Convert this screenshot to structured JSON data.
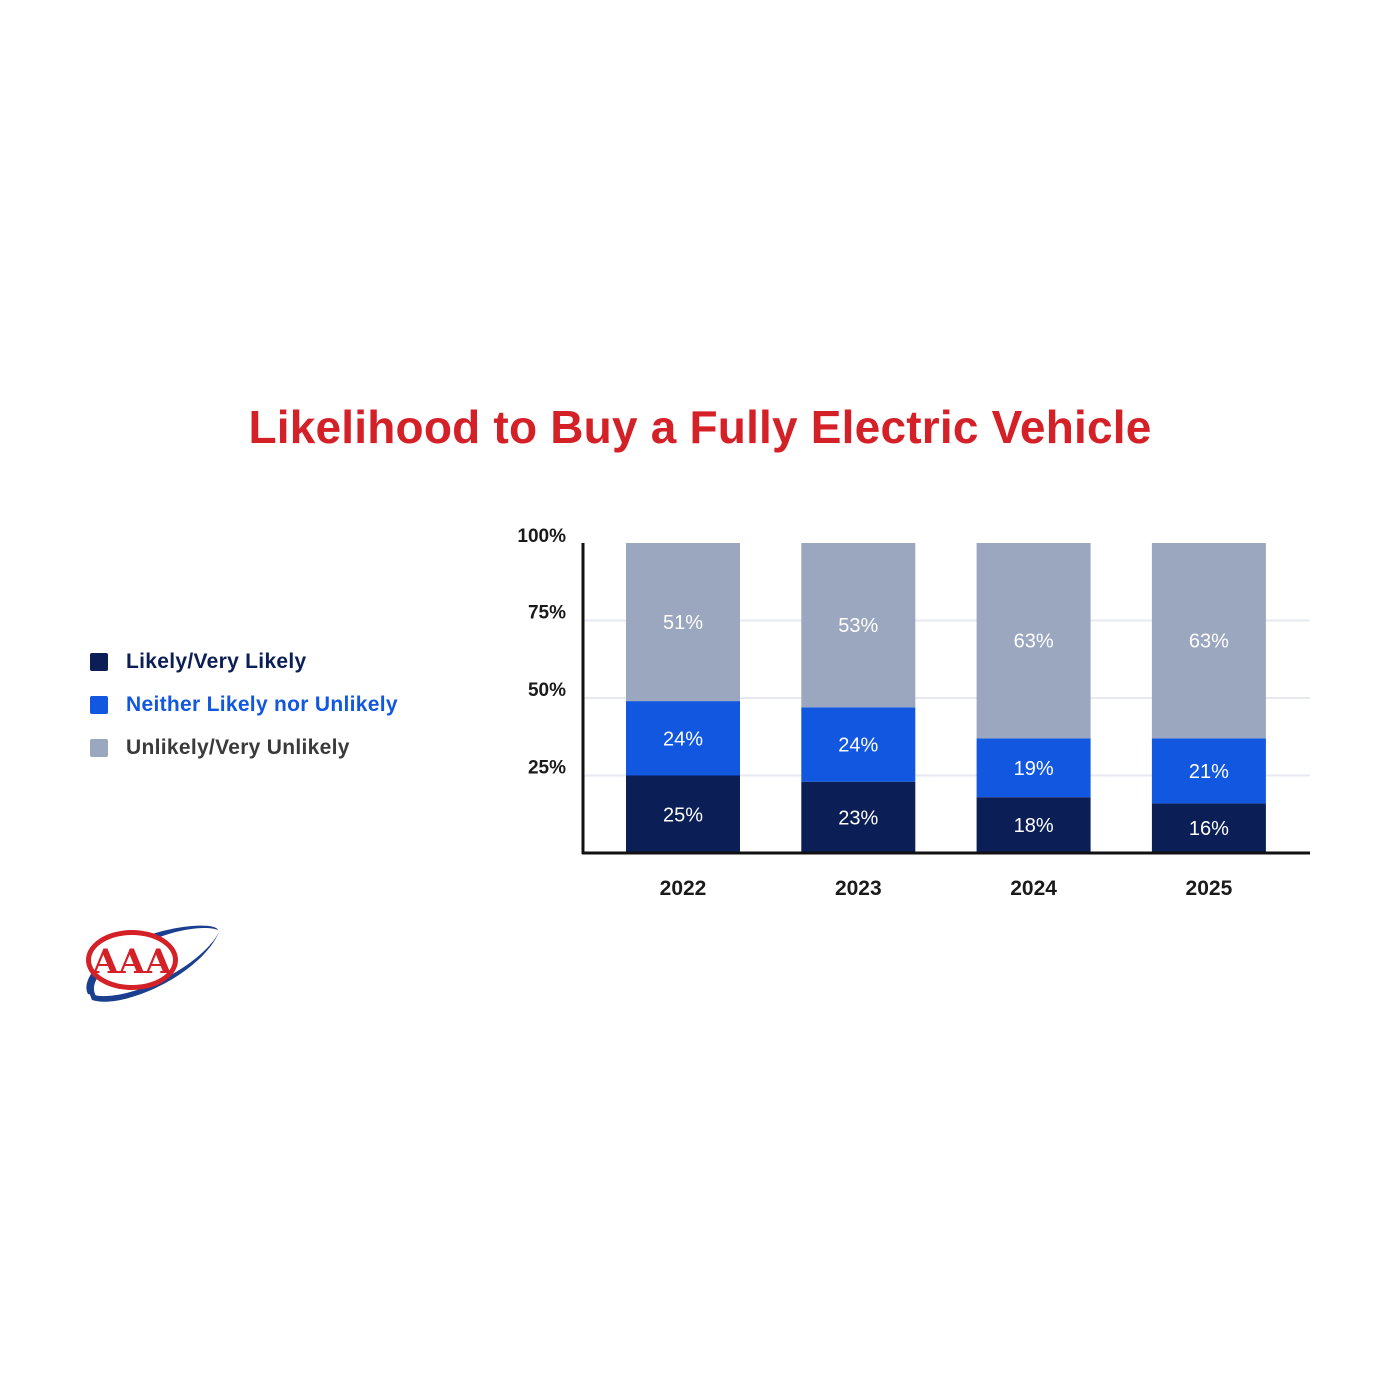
{
  "title": "Likelihood to Buy a Fully Electric Vehicle",
  "legend": [
    {
      "label": "Likely/Very Likely",
      "color": "#0b1f56",
      "text_color": "#0b1f56"
    },
    {
      "label": "Neither Likely nor Unlikely",
      "color": "#1257e0",
      "text_color": "#1257e0"
    },
    {
      "label": "Unlikely/Very Unlikely",
      "color": "#9aa7bf",
      "text_color": "#3a3a3a"
    }
  ],
  "logo": {
    "text": "AAA",
    "ring_color": "#1b3f8f",
    "fill_color": "#d42027"
  },
  "chart_data": {
    "type": "bar",
    "stacked": true,
    "title": "Likelihood to Buy a Fully Electric Vehicle",
    "categories": [
      "2022",
      "2023",
      "2024",
      "2025"
    ],
    "series": [
      {
        "name": "Likely/Very Likely",
        "color": "#0b1f56",
        "values": [
          25,
          23,
          18,
          16
        ],
        "labels": [
          "25%",
          "23%",
          "18%",
          "16%"
        ]
      },
      {
        "name": "Neither Likely nor Unlikely",
        "color": "#1257e0",
        "values": [
          24,
          24,
          19,
          21
        ],
        "labels": [
          "24%",
          "24%",
          "19%",
          "21%"
        ]
      },
      {
        "name": "Unlikely/Very Unlikely",
        "color": "#9aa7bf",
        "values": [
          51,
          53,
          63,
          63
        ],
        "labels": [
          "51%",
          "53%",
          "63%",
          "63%"
        ]
      }
    ],
    "y_ticks": [
      "25%",
      "50%",
      "75%",
      "100%"
    ],
    "y_tick_values": [
      25,
      50,
      75,
      100
    ],
    "ylim": [
      0,
      100
    ],
    "grid": true,
    "legend_position": "left"
  }
}
